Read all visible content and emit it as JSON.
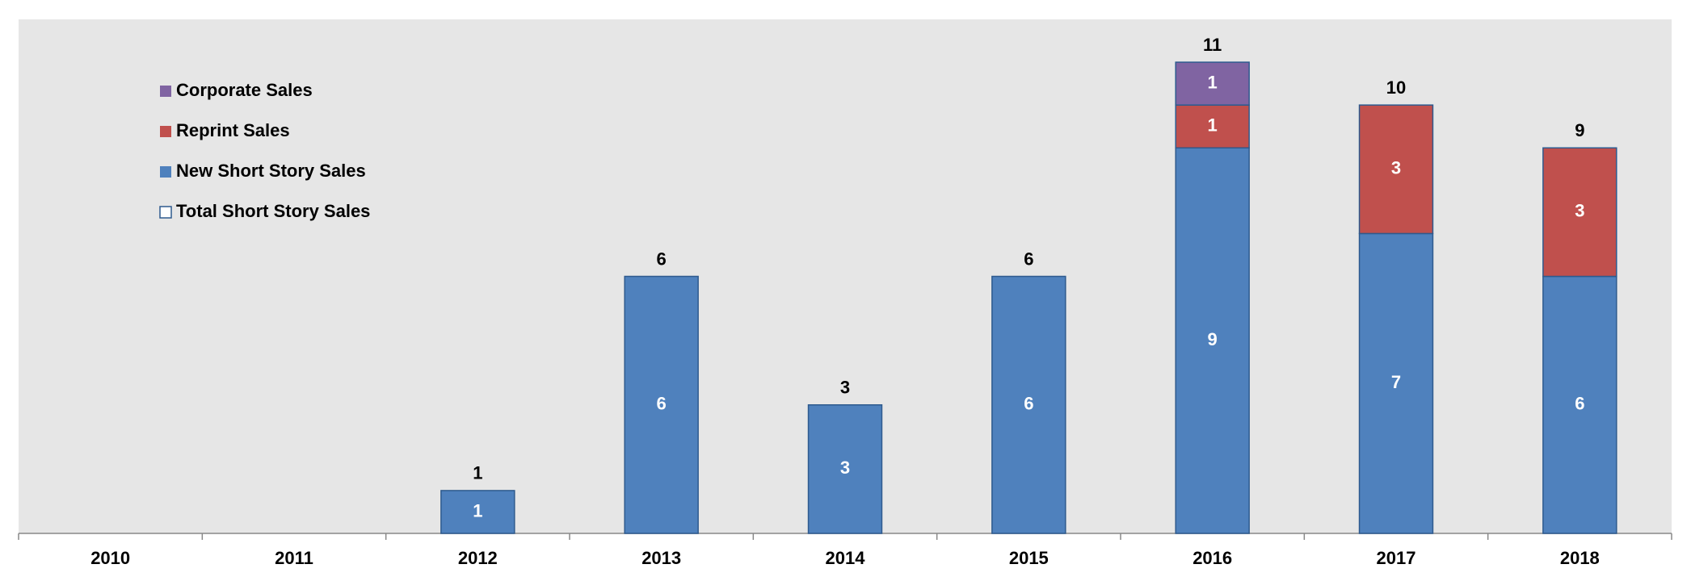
{
  "chart_data": {
    "type": "stacked-bar",
    "categories": [
      "2010",
      "2011",
      "2012",
      "2013",
      "2014",
      "2015",
      "2016",
      "2017",
      "2018"
    ],
    "series": [
      {
        "name": "New Short Story Sales",
        "color": "#4f81bd",
        "values": [
          null,
          null,
          1,
          6,
          3,
          6,
          9,
          7,
          6
        ]
      },
      {
        "name": "Reprint Sales",
        "color": "#c0504d",
        "values": [
          null,
          null,
          null,
          null,
          null,
          null,
          1,
          3,
          3
        ]
      },
      {
        "name": "Corporate Sales",
        "color": "#8064a2",
        "values": [
          null,
          null,
          null,
          null,
          null,
          null,
          1,
          null,
          null
        ]
      }
    ],
    "totals": {
      "name": "Total Short Story Sales",
      "values": [
        null,
        null,
        1,
        6,
        3,
        6,
        11,
        10,
        9
      ]
    },
    "ylim": [
      0,
      12
    ],
    "legend": "top-left"
  }
}
